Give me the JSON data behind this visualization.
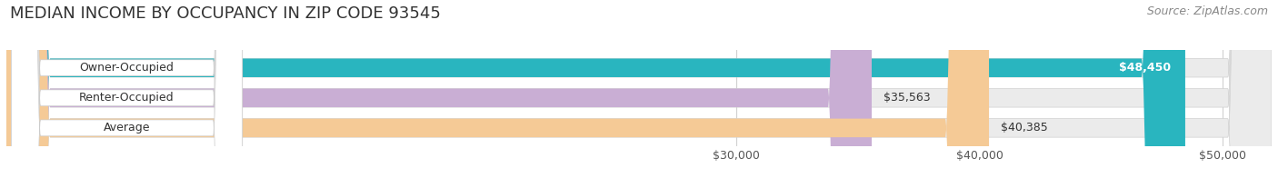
{
  "title": "MEDIAN INCOME BY OCCUPANCY IN ZIP CODE 93545",
  "source": "Source: ZipAtlas.com",
  "categories": [
    "Owner-Occupied",
    "Renter-Occupied",
    "Average"
  ],
  "values": [
    48450,
    35563,
    40385
  ],
  "bar_colors": [
    "#29b5bf",
    "#c9aed4",
    "#f5ca96"
  ],
  "value_labels": [
    "$48,450",
    "$35,563",
    "$40,385"
  ],
  "value_label_inside": [
    true,
    false,
    false
  ],
  "data_min": 0,
  "xlim_min": 0,
  "xlim_max": 52000,
  "xticks": [
    30000,
    40000,
    50000
  ],
  "xtick_labels": [
    "$30,000",
    "$40,000",
    "$50,000"
  ],
  "background_color": "#ffffff",
  "bar_bg_color": "#ebebeb",
  "label_box_color": "#ffffff",
  "title_fontsize": 13,
  "source_fontsize": 9,
  "label_fontsize": 9,
  "tick_fontsize": 9,
  "bar_height": 0.62,
  "bar_gap": 0.38
}
